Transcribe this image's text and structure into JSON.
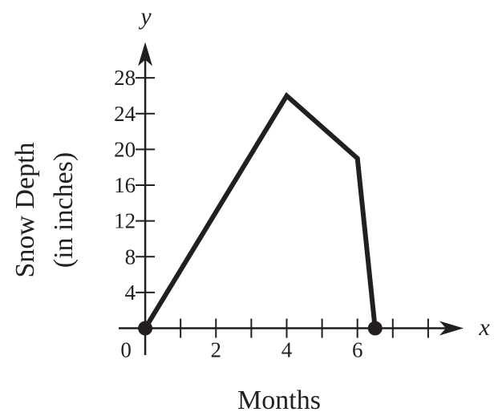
{
  "chart_data": {
    "type": "line",
    "x_label": "Months",
    "y_label_lines": [
      "Snow Depth",
      "(in inches)"
    ],
    "x_axis_name": "x",
    "y_axis_name": "y",
    "x": [
      0,
      4,
      6,
      6.5
    ],
    "values": [
      0,
      26,
      19,
      0
    ],
    "color": "#231f20",
    "endpoint_markers": true,
    "xlim": [
      -0.75,
      9
    ],
    "ylim": [
      -3,
      32
    ],
    "xticks": [
      0,
      2,
      4,
      6
    ],
    "xminor_ticks": [
      1,
      3,
      5,
      7,
      8
    ],
    "yticks": [
      4,
      8,
      12,
      16,
      20,
      24,
      28
    ]
  }
}
